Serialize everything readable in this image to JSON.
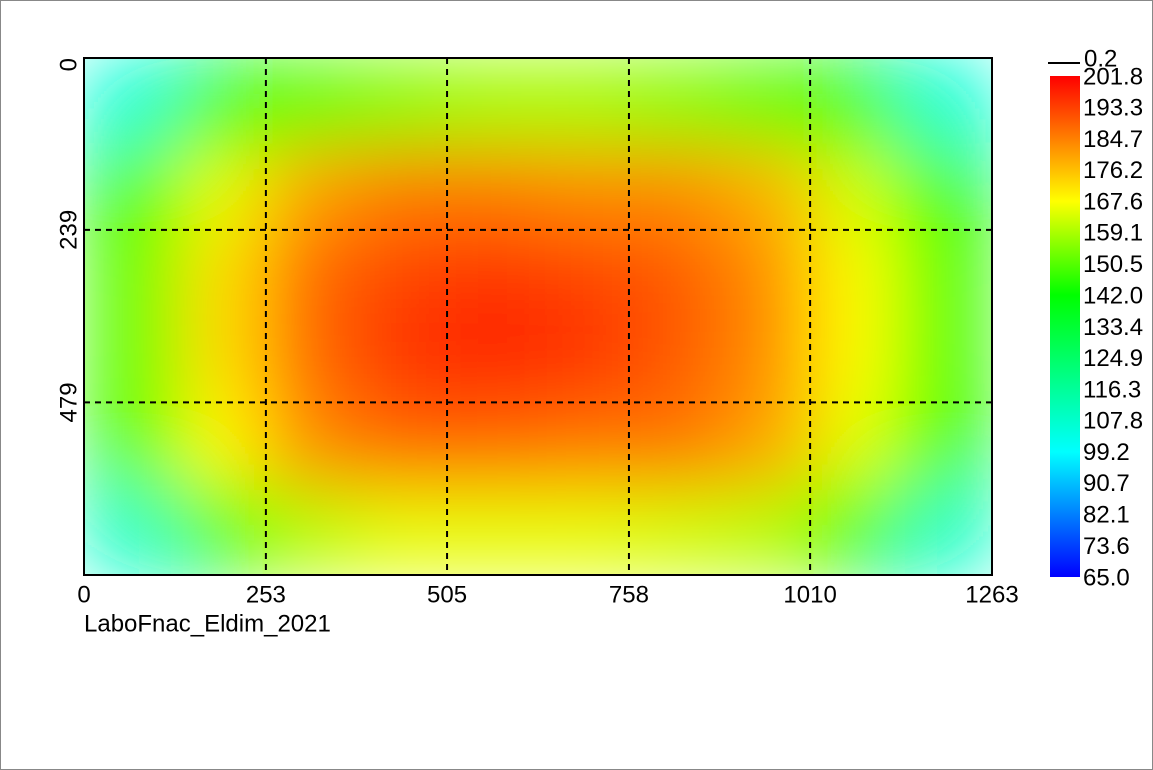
{
  "chart_data": {
    "type": "heatmap",
    "caption": "LaboFnac_Eldim_2021",
    "legend_line_label": "0.2",
    "xlim": [
      0,
      1263
    ],
    "ylim": [
      719,
      0
    ],
    "xticks": [
      0,
      253,
      505,
      758,
      1010,
      1263
    ],
    "yticks": [
      0,
      239,
      479
    ],
    "grid": true,
    "x": [
      63,
      189,
      316,
      442,
      568,
      695,
      821,
      947,
      1074,
      1200
    ],
    "y": [
      60,
      180,
      300,
      420,
      540,
      660
    ],
    "z": [
      [
        105,
        140,
        150,
        155,
        158,
        158,
        155,
        150,
        140,
        105
      ],
      [
        145,
        165,
        180,
        185,
        185,
        183,
        183,
        178,
        163,
        143
      ],
      [
        150,
        172,
        188,
        193,
        195,
        193,
        190,
        183,
        168,
        148
      ],
      [
        150,
        172,
        188,
        195,
        197,
        195,
        190,
        183,
        168,
        148
      ],
      [
        148,
        168,
        183,
        188,
        188,
        186,
        186,
        180,
        165,
        146
      ],
      [
        108,
        145,
        160,
        165,
        165,
        165,
        163,
        160,
        145,
        108
      ]
    ],
    "colormap": [
      {
        "value": 65,
        "color": "#0000ff"
      },
      {
        "value": 99.2,
        "color": "#00ffff"
      },
      {
        "value": 142,
        "color": "#00ff00"
      },
      {
        "value": 167.6,
        "color": "#ffff00"
      },
      {
        "value": 201.8,
        "color": "#ff0000"
      }
    ],
    "clim": [
      65,
      201.8
    ],
    "cticks": [
      201.8,
      193.3,
      184.7,
      176.2,
      167.6,
      159.1,
      150.5,
      {
        "value": 142,
        "label": "142.0"
      },
      133.4,
      124.9,
      116.3,
      107.8,
      99.2,
      90.7,
      82.1,
      73.6,
      {
        "value": 65,
        "label": "65.0"
      }
    ]
  }
}
